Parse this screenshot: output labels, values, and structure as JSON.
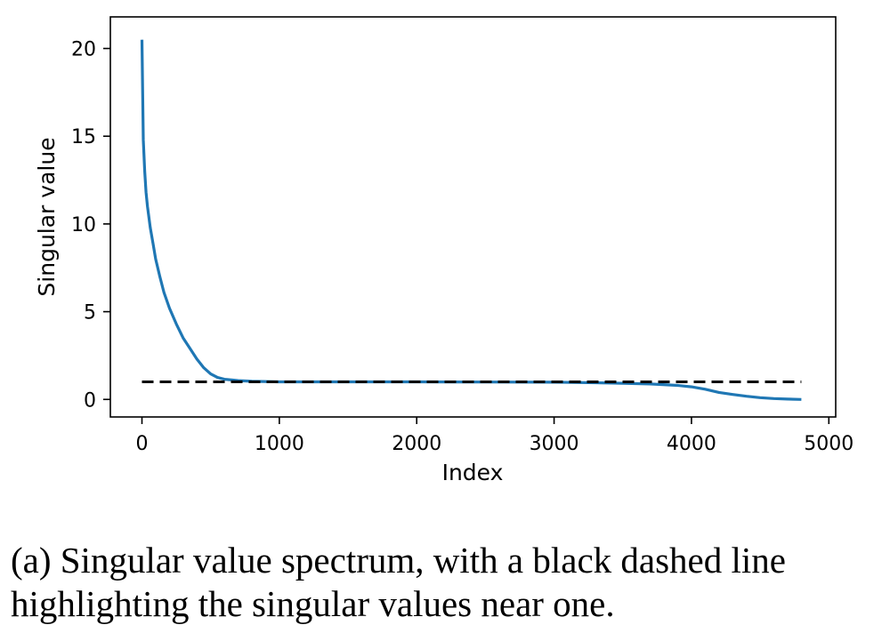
{
  "chart_data": {
    "type": "line",
    "xlabel": "Index",
    "ylabel": "Singular value",
    "xlim": [
      -230,
      5050
    ],
    "ylim": [
      -1.0,
      21.8
    ],
    "xticks": [
      0,
      1000,
      2000,
      3000,
      4000,
      5000
    ],
    "yticks": [
      0,
      5,
      10,
      15,
      20
    ],
    "grid": false,
    "series": [
      {
        "color": "#1f77b4",
        "x": [
          0,
          10,
          20,
          30,
          40,
          60,
          80,
          100,
          130,
          160,
          200,
          250,
          300,
          350,
          400,
          450,
          500,
          550,
          600,
          700,
          800,
          1000,
          1500,
          2000,
          2500,
          3000,
          3300,
          3500,
          3700,
          3900,
          4000,
          4100,
          4200,
          4300,
          4400,
          4500,
          4600,
          4700,
          4800
        ],
        "y": [
          20.5,
          14.8,
          13.0,
          11.8,
          11.0,
          9.8,
          8.9,
          8.0,
          7.0,
          6.1,
          5.2,
          4.3,
          3.5,
          2.9,
          2.3,
          1.8,
          1.45,
          1.25,
          1.15,
          1.07,
          1.03,
          1.0,
          1.0,
          1.0,
          0.99,
          0.98,
          0.95,
          0.92,
          0.88,
          0.8,
          0.72,
          0.58,
          0.4,
          0.28,
          0.18,
          0.1,
          0.05,
          0.02,
          0.0
        ]
      },
      {
        "color": "#000000",
        "style": "dashed",
        "x": [
          0,
          4800
        ],
        "y": [
          1.0,
          1.0
        ]
      }
    ]
  },
  "caption": "(a) Singular value spectrum, with a black dashed line highlighting the singular values near one."
}
